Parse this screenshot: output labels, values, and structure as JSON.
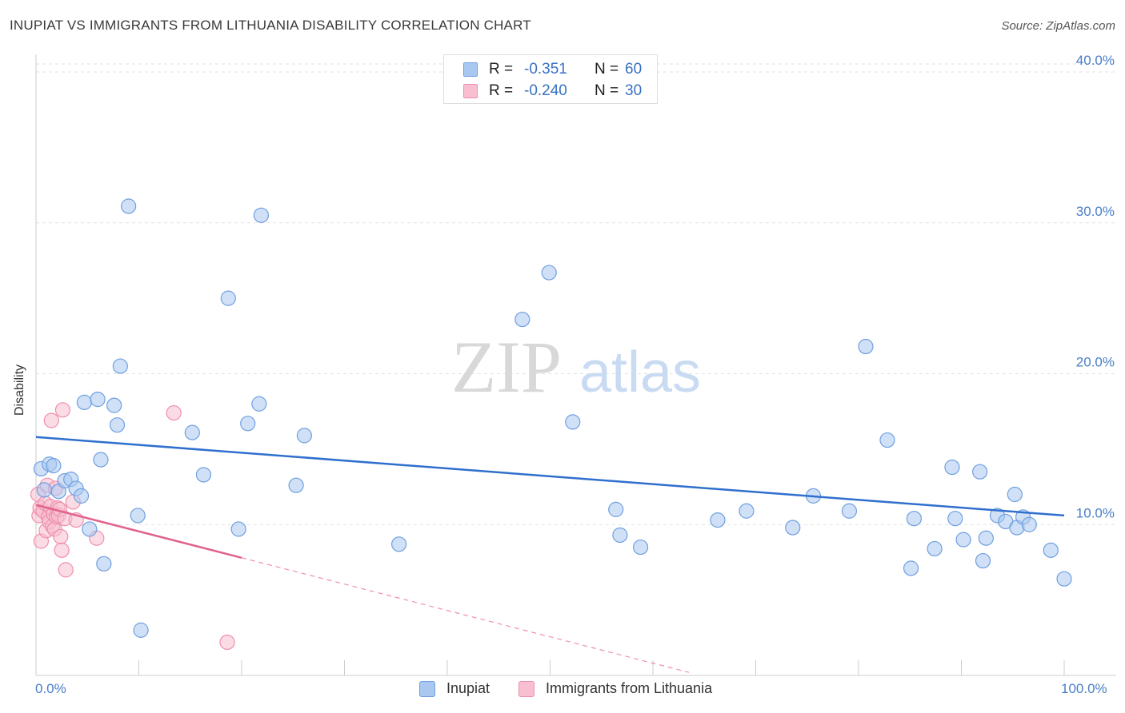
{
  "title": "INUPIAT VS IMMIGRANTS FROM LITHUANIA DISABILITY CORRELATION CHART",
  "source": "Source: ZipAtlas.com",
  "watermark": {
    "zip": "ZIP",
    "atlas": "atlas"
  },
  "legend_top": {
    "rows": [
      {
        "r_label": "R =",
        "r_value": "-0.351",
        "n_label": "N =",
        "n_value": "60",
        "color": "#a9c8f0",
        "border": "#6f9fe0"
      },
      {
        "r_label": "R =",
        "r_value": "-0.240",
        "n_label": "N =",
        "n_value": "30",
        "color": "#f7bfd0",
        "border": "#ef8fae"
      }
    ]
  },
  "legend_bottom": {
    "items": [
      {
        "label": "Inupiat",
        "color": "#a9c8f0",
        "border": "#6f9fe0"
      },
      {
        "label": "Immigrants from Lithuania",
        "color": "#f7bfd0",
        "border": "#ef8fae"
      }
    ]
  },
  "x_axis": {
    "min_label": "0.0%",
    "max_label": "100.0%"
  },
  "chart_data": {
    "type": "scatter",
    "title": "INUPIAT VS IMMIGRANTS FROM LITHUANIA DISABILITY CORRELATION CHART",
    "xlabel": "",
    "ylabel": "Disability",
    "xlim": [
      0,
      100
    ],
    "ylim": [
      0,
      40
    ],
    "y_ticks": [
      10,
      20,
      30,
      40
    ],
    "y_tick_labels": [
      "10.0%",
      "20.0%",
      "30.0%",
      "40.0%"
    ],
    "x_ticks": [
      0,
      10,
      20,
      30,
      40,
      50,
      60,
      70,
      80,
      90,
      100
    ],
    "grid": true,
    "legend_position": "top-center",
    "series": [
      {
        "name": "Inupiat",
        "color": "#6f9fe0",
        "fill": "#a9c8f0",
        "trend": {
          "x": [
            0,
            100
          ],
          "y": [
            15.8,
            10.6
          ],
          "color": "#2f6fce"
        },
        "points": [
          [
            0.5,
            13.7
          ],
          [
            0.8,
            12.3
          ],
          [
            1.3,
            14.0
          ],
          [
            1.7,
            13.9
          ],
          [
            2.2,
            12.2
          ],
          [
            2.8,
            12.9
          ],
          [
            3.4,
            13.0
          ],
          [
            3.9,
            12.4
          ],
          [
            4.4,
            11.9
          ],
          [
            4.7,
            18.1
          ],
          [
            5.2,
            9.7
          ],
          [
            6.0,
            18.3
          ],
          [
            6.3,
            14.3
          ],
          [
            6.6,
            7.4
          ],
          [
            7.6,
            17.9
          ],
          [
            7.9,
            16.6
          ],
          [
            8.2,
            20.5
          ],
          [
            9.0,
            31.1
          ],
          [
            9.9,
            10.6
          ],
          [
            10.2,
            3.0
          ],
          [
            15.2,
            16.1
          ],
          [
            16.3,
            13.3
          ],
          [
            18.7,
            25.0
          ],
          [
            19.7,
            9.7
          ],
          [
            20.6,
            16.7
          ],
          [
            21.7,
            18.0
          ],
          [
            21.9,
            30.5
          ],
          [
            25.3,
            12.6
          ],
          [
            26.1,
            15.9
          ],
          [
            35.3,
            8.7
          ],
          [
            47.3,
            23.6
          ],
          [
            49.9,
            26.7
          ],
          [
            52.2,
            16.8
          ],
          [
            56.4,
            11.0
          ],
          [
            56.8,
            9.3
          ],
          [
            58.8,
            8.5
          ],
          [
            66.3,
            10.3
          ],
          [
            69.1,
            10.9
          ],
          [
            73.6,
            9.8
          ],
          [
            75.6,
            11.9
          ],
          [
            79.1,
            10.9
          ],
          [
            80.7,
            21.8
          ],
          [
            82.8,
            15.6
          ],
          [
            85.1,
            7.1
          ],
          [
            85.4,
            10.4
          ],
          [
            87.4,
            8.4
          ],
          [
            89.1,
            13.8
          ],
          [
            89.4,
            10.4
          ],
          [
            90.2,
            9.0
          ],
          [
            91.8,
            13.5
          ],
          [
            92.1,
            7.6
          ],
          [
            92.4,
            9.1
          ],
          [
            93.5,
            10.6
          ],
          [
            94.3,
            10.2
          ],
          [
            95.2,
            12.0
          ],
          [
            95.4,
            9.8
          ],
          [
            96.0,
            10.5
          ],
          [
            96.6,
            10.0
          ],
          [
            98.7,
            8.3
          ],
          [
            100.0,
            6.4
          ]
        ]
      },
      {
        "name": "Immigrants from Lithuania",
        "color": "#ef8fae",
        "fill": "#f7bfd0",
        "trend": {
          "x": [
            0,
            20
          ],
          "y": [
            11.3,
            7.8
          ],
          "color": "#e0628e"
        },
        "trend_dashed": {
          "x": [
            20,
            63.5
          ],
          "y": [
            7.8,
            0.2
          ]
        },
        "points": [
          [
            0.2,
            12.0
          ],
          [
            0.3,
            10.6
          ],
          [
            0.4,
            11.1
          ],
          [
            0.5,
            8.9
          ],
          [
            0.7,
            10.9
          ],
          [
            0.9,
            11.4
          ],
          [
            1.0,
            9.6
          ],
          [
            1.1,
            12.6
          ],
          [
            1.2,
            10.5
          ],
          [
            1.3,
            10.2
          ],
          [
            1.4,
            11.2
          ],
          [
            1.5,
            16.9
          ],
          [
            1.6,
            9.9
          ],
          [
            1.7,
            10.7
          ],
          [
            1.8,
            9.7
          ],
          [
            1.9,
            12.4
          ],
          [
            2.0,
            10.5
          ],
          [
            2.1,
            11.1
          ],
          [
            2.2,
            10.6
          ],
          [
            2.3,
            11.0
          ],
          [
            2.4,
            9.2
          ],
          [
            2.5,
            8.3
          ],
          [
            2.6,
            17.6
          ],
          [
            2.8,
            10.4
          ],
          [
            2.9,
            7.0
          ],
          [
            3.6,
            11.5
          ],
          [
            3.9,
            10.3
          ],
          [
            5.9,
            9.1
          ],
          [
            13.4,
            17.4
          ],
          [
            18.6,
            2.2
          ]
        ]
      }
    ]
  }
}
